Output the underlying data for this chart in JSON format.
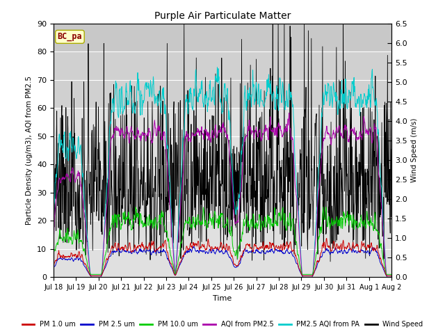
{
  "title": "Purple Air Particulate Matter",
  "station_label": "BC_pa",
  "xlabel": "Time",
  "ylabel_left": "Particle Density (ug/m3), AQI from PM2.5",
  "ylabel_right": "Wind Speed (m/s)",
  "ylim_left": [
    0,
    90
  ],
  "ylim_right": [
    0.0,
    6.5
  ],
  "yticks_left": [
    0,
    10,
    20,
    30,
    40,
    50,
    60,
    70,
    80,
    90
  ],
  "yticks_right": [
    0.0,
    0.5,
    1.0,
    1.5,
    2.0,
    2.5,
    3.0,
    3.5,
    4.0,
    4.5,
    5.0,
    5.5,
    6.0,
    6.5
  ],
  "x_tick_labels": [
    "Jul 18",
    "Jul 19",
    "Jul 20",
    "Jul 21",
    "Jul 22",
    "Jul 23",
    "Jul 24",
    "Jul 25",
    "Jul 26",
    "Jul 27",
    "Jul 28",
    "Jul 29",
    "Jul 30",
    "Jul 31",
    "Aug 1",
    "Aug 2"
  ],
  "colors": {
    "pm1": "#cc0000",
    "pm25": "#0000cc",
    "pm10": "#00cc00",
    "aqi_pm25": "#aa00aa",
    "pm25_aqi_pa": "#00cccc",
    "wind": "#000000"
  },
  "legend_labels": [
    "PM 1.0 um",
    "PM 2.5 um",
    "PM 10.0 um",
    "AQI from PM2.5",
    "PM2.5 AQI from PA",
    "Wind Speed"
  ],
  "bg_bands": [
    {
      "ymin": 0,
      "ymax": 60,
      "color": "#e0e0e0"
    },
    {
      "ymin": 60,
      "ymax": 80,
      "color": "#d0d0d0"
    },
    {
      "ymin": 80,
      "ymax": 90,
      "color": "#c8c8c8"
    }
  ],
  "n_points": 1000
}
